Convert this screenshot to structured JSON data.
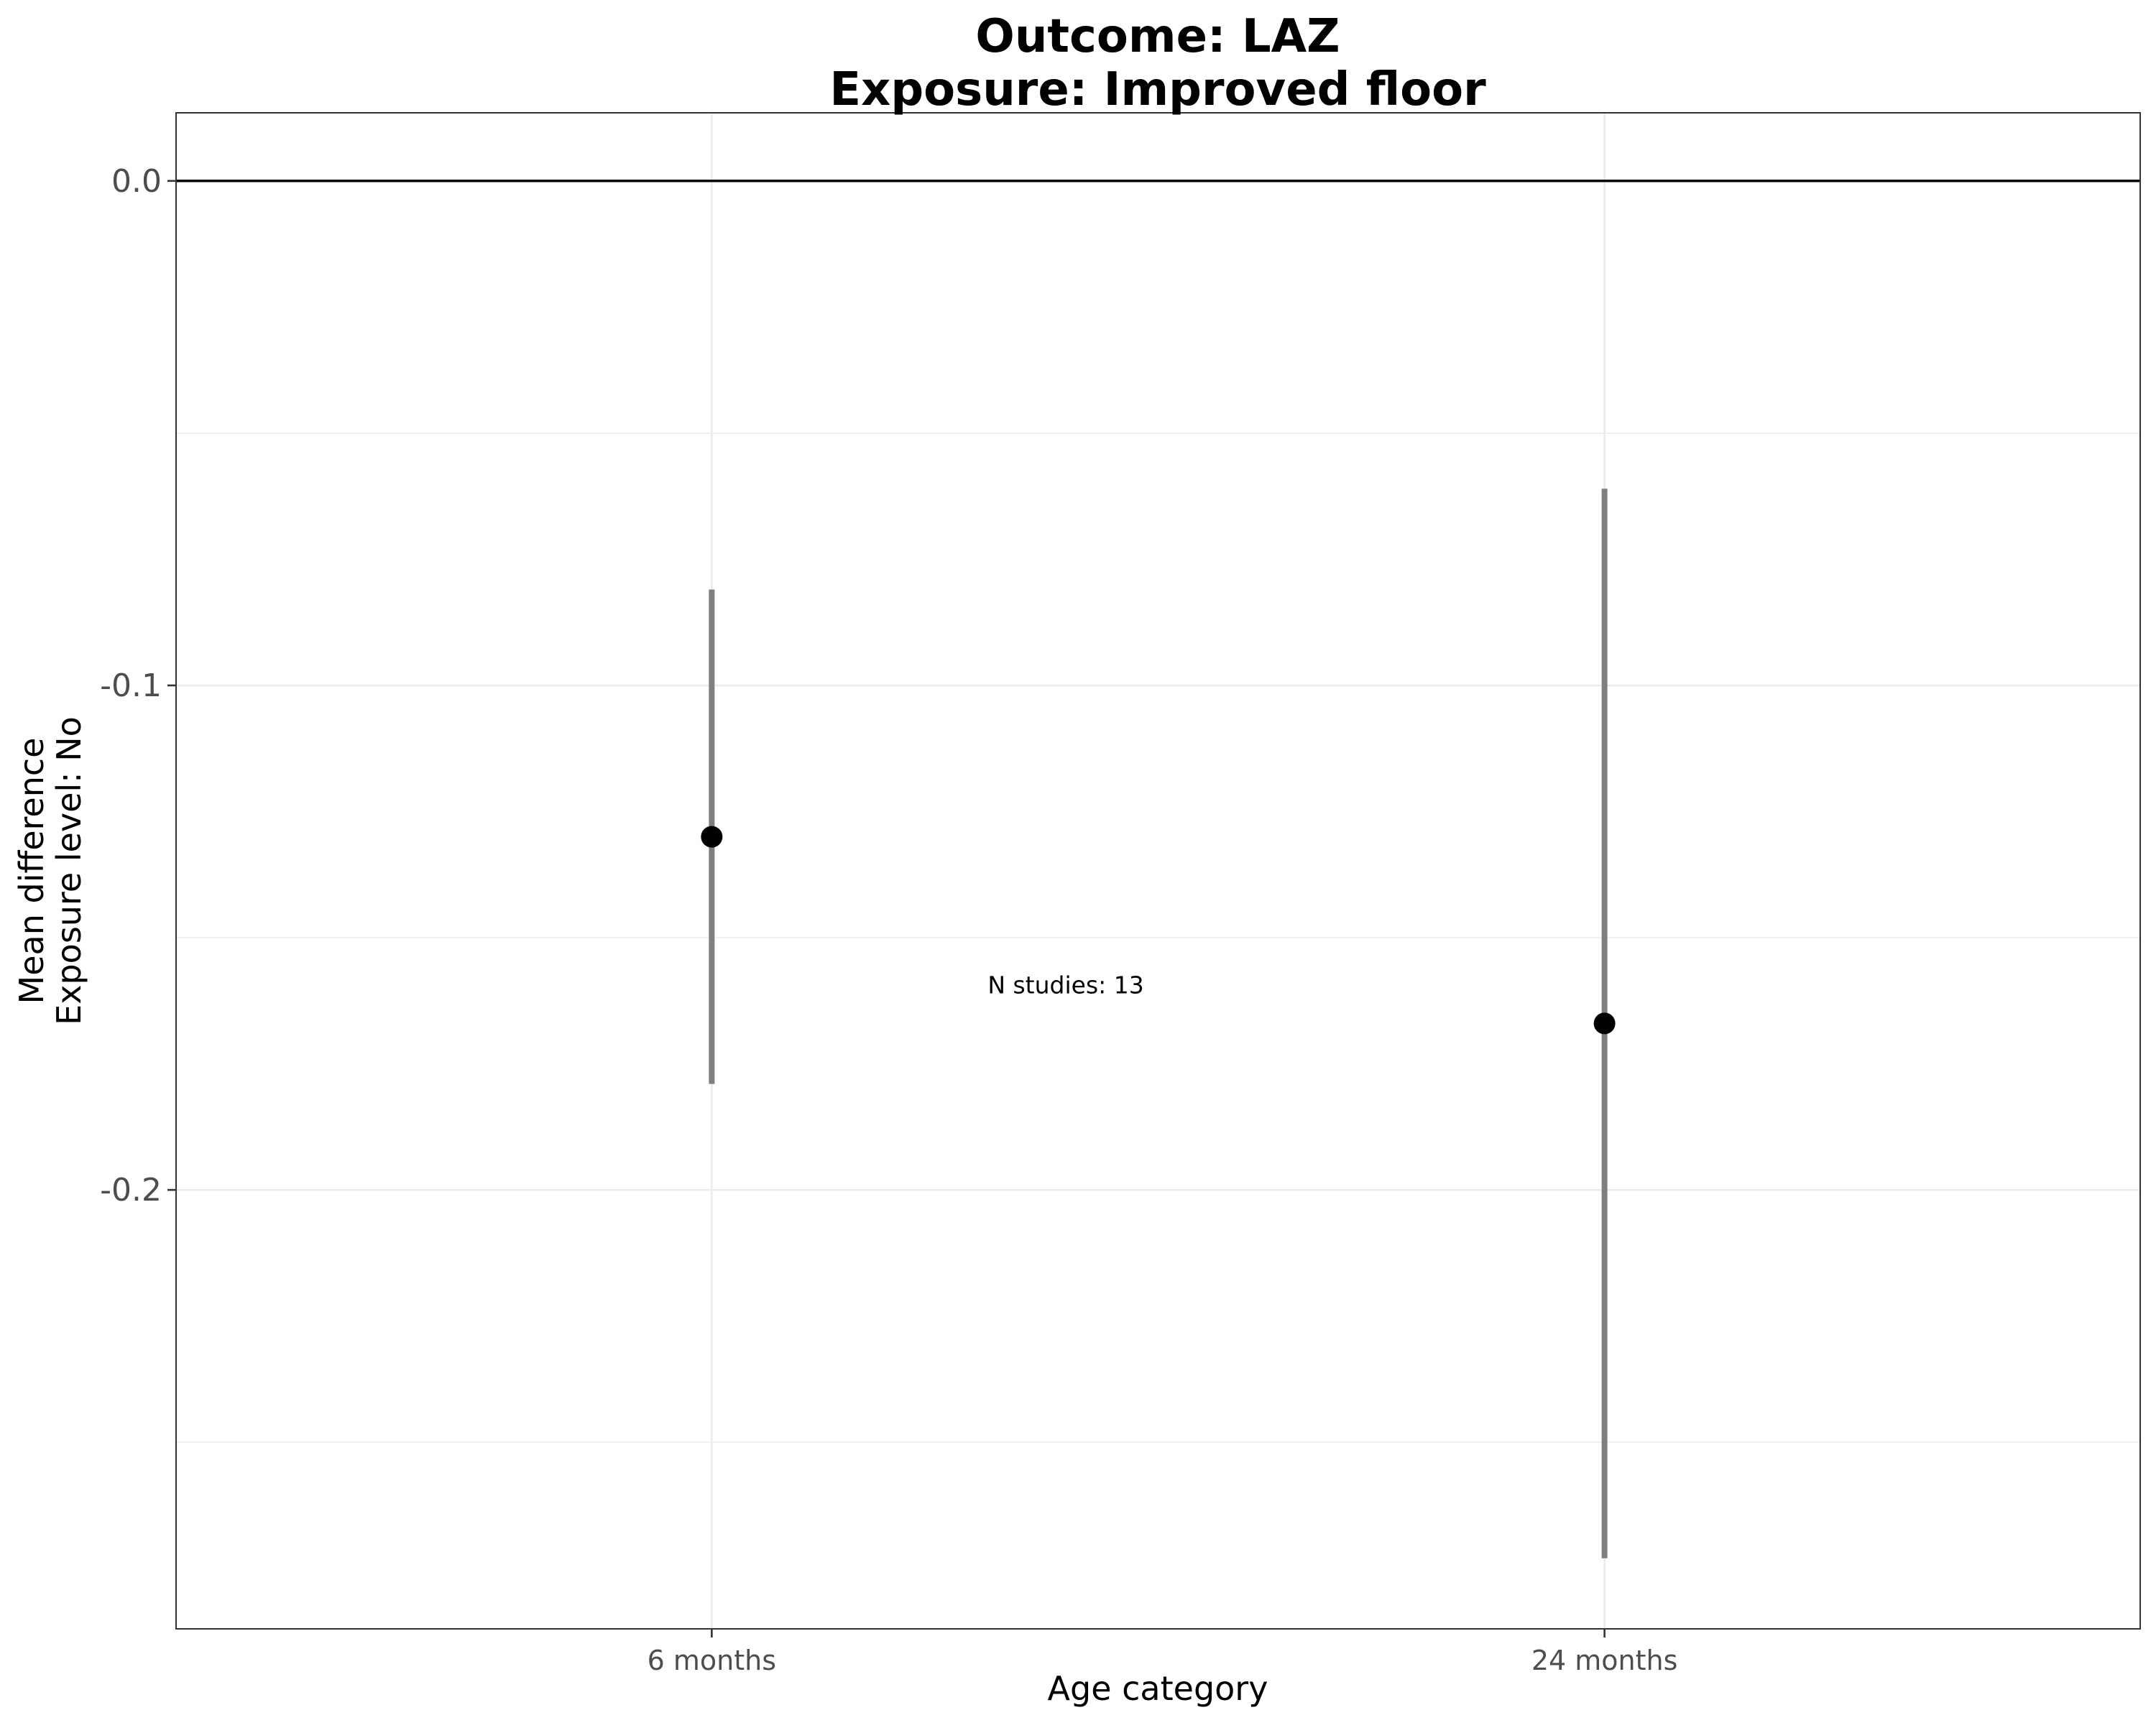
{
  "chart_data": {
    "type": "scatter",
    "subtype": "point-range",
    "title_line1": "Outcome: LAZ",
    "title_line2": "Exposure: Improved floor",
    "xlabel": "Age category",
    "ylabel_line1": "Mean difference",
    "ylabel_line2": "Exposure level: No",
    "categories": [
      "6 months",
      "24 months"
    ],
    "points": [
      {
        "category": "6 months",
        "estimate": -0.13,
        "ci_lower": -0.179,
        "ci_upper": -0.081
      },
      {
        "category": "24 months",
        "estimate": -0.167,
        "ci_lower": -0.273,
        "ci_upper": -0.061
      }
    ],
    "y_ticks": [
      0.0,
      -0.1,
      -0.2
    ],
    "y_tick_labels": [
      "0.0",
      "-0.1",
      "-0.2"
    ],
    "ylim": [
      -0.287,
      0.0135
    ],
    "reference_line": 0.0,
    "annotation": {
      "text": "N studies: 13",
      "category_position": 1.3,
      "y": -0.161
    },
    "grid": true,
    "colors": {
      "point": "#000000",
      "interval": "#7f7f7f",
      "grid": "#ebebeb",
      "reference": "#000000",
      "panel_border": "#333333"
    }
  }
}
